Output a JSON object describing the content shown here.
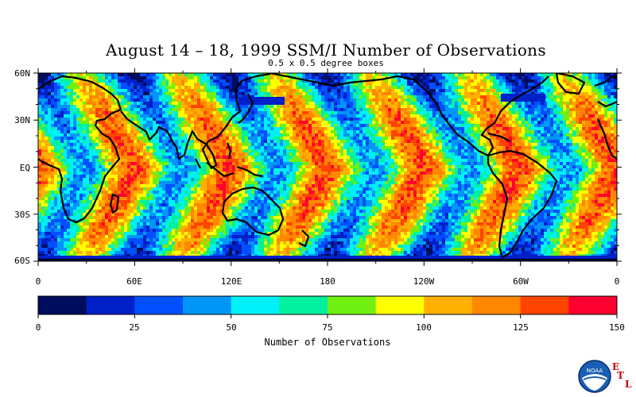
{
  "title": "August 14 – 18, 1999 SSM/I Number of Observations",
  "subtitle": "0.5 x 0.5 degree boxes",
  "lat_labels": [
    "60N",
    "30N",
    "EQ",
    "30S",
    "60S"
  ],
  "lon_labels": [
    "0",
    "60E",
    "120E",
    "180",
    "120W",
    "60W",
    "0"
  ],
  "colorbar": {
    "title": "Number of Observations",
    "tick_labels": [
      "0",
      "25",
      "50",
      "75",
      "100",
      "125",
      "150"
    ],
    "colors": [
      "#000c5e",
      "#0020c8",
      "#0050ff",
      "#0096f8",
      "#00f0f8",
      "#00f0a0",
      "#70f010",
      "#ffff00",
      "#ffb000",
      "#ff8800",
      "#ff4400",
      "#ff0030"
    ]
  },
  "chart_data": {
    "type": "heatmap",
    "title": "August 14 – 18, 1999 SSM/I Number of Observations",
    "subtitle": "0.5 x 0.5 degree boxes",
    "x_axis": {
      "range": [
        0,
        360
      ],
      "tick_labels": [
        "0",
        "60E",
        "120E",
        "180",
        "120W",
        "60W",
        "0"
      ]
    },
    "y_axis": {
      "range": [
        -60,
        60
      ],
      "tick_labels": [
        "60N",
        "30N",
        "EQ",
        "30S",
        "60S"
      ]
    },
    "color_scale": {
      "min": 0,
      "max": 150,
      "label": "Number of Observations"
    }
  },
  "logo": {
    "org": "NOAA",
    "letters": [
      "E",
      "T",
      "L"
    ]
  }
}
